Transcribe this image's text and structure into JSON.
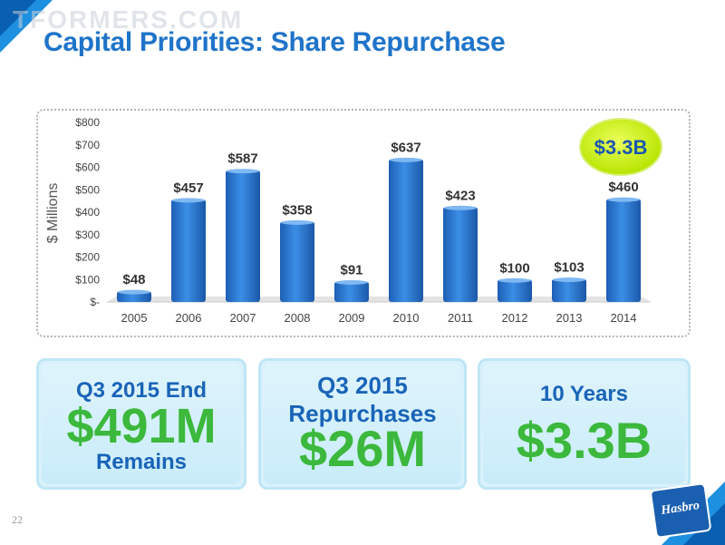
{
  "watermark": "TFORMERS.COM",
  "title": "Capital Priorities: Share Repurchase",
  "badge": "$3.3B",
  "chart_data": {
    "type": "bar",
    "categories": [
      "2005",
      "2006",
      "2007",
      "2008",
      "2009",
      "2010",
      "2011",
      "2012",
      "2013",
      "2014"
    ],
    "values": [
      48,
      457,
      587,
      358,
      91,
      637,
      423,
      100,
      103,
      460
    ],
    "value_labels": [
      "$48",
      "$457",
      "$587",
      "$358",
      "$91",
      "$637",
      "$423",
      "$100",
      "$103",
      "$460"
    ],
    "ylabel": "$ Millions",
    "yticks": [
      "$-",
      "$100",
      "$200",
      "$300",
      "$400",
      "$500",
      "$600",
      "$700",
      "$800"
    ],
    "ylim": [
      0,
      800
    ],
    "bar_color": "#2a78d4",
    "grid": false
  },
  "cards": [
    {
      "line1": "Q3 2015 End",
      "big": "$491M",
      "line2": "Remains"
    },
    {
      "line1": "Q3 2015",
      "line2": "Repurchases",
      "big": "$26M"
    },
    {
      "line1": "10 Years",
      "big": "$3.3B"
    }
  ],
  "page_number": "22",
  "logo": "Hasbro"
}
